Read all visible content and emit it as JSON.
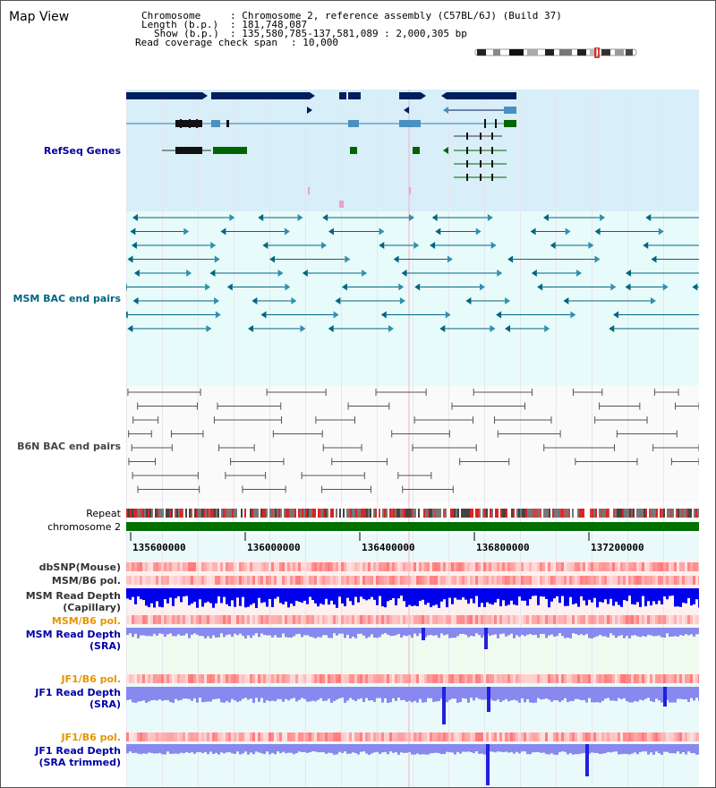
{
  "page": {
    "title": "Map View"
  },
  "header": {
    "chromosome_label": "Chromosome",
    "chromosome_value": ": Chromosome 2, reference assembly (C57BL/6J) (Build 37)",
    "length_label": "Length (b.p.)",
    "length_value": ": 181,748,087",
    "show_label": "Show (b.p.)",
    "show_value": ": 135,580,785-137,581,089 : 2,000,305 bp",
    "span_label": "Read coverage check span",
    "span_value": ": 10,000"
  },
  "tracks": {
    "refseq": {
      "label": "RefSeq Genes",
      "color": "#000099"
    },
    "msm_bac": {
      "label": "MSM BAC end pairs",
      "color": "#006680"
    },
    "b6n_bac": {
      "label": "B6N BAC end pairs",
      "color": "#444444"
    },
    "repeat": {
      "label": "Repeat"
    },
    "chromosome": {
      "label": "chromosome 2"
    },
    "dbsnp": {
      "label": "dbSNP(Mouse)"
    },
    "msm_b6_pol": {
      "label": "MSM/B6 pol."
    },
    "msm_read_depth_cap": {
      "label1": "MSM Read Depth",
      "label2": "(Capillary)"
    },
    "msm_b6_pol2": {
      "label": "MSM/B6 pol."
    },
    "msm_read_depth_sra": {
      "label1": "MSM Read Depth",
      "label2": "(SRA)"
    },
    "jf1_b6_pol": {
      "label": "JF1/B6 pol."
    },
    "jf1_read_depth_sra": {
      "label1": "JF1 Read Depth",
      "label2": "(SRA)"
    },
    "jf1_b6_pol2": {
      "label": "JF1/B6 pol."
    },
    "jf1_read_depth_trim": {
      "label1": "JF1 Read Depth",
      "label2": "(SRA trimmed)"
    }
  },
  "axis": {
    "ticks": [
      "135600000",
      "136000000",
      "136400000",
      "136800000",
      "137200000"
    ]
  },
  "colors": {
    "navy": "#001f5c",
    "gene_blue": "#4a90c0",
    "gene_green": "#006400",
    "msm_teal": "#006680",
    "b6n_gray": "#444444",
    "depth_blue": "#0000ee",
    "depth_light": "#8888ee",
    "pol_red": "#e85050",
    "orange": "#e69500"
  }
}
